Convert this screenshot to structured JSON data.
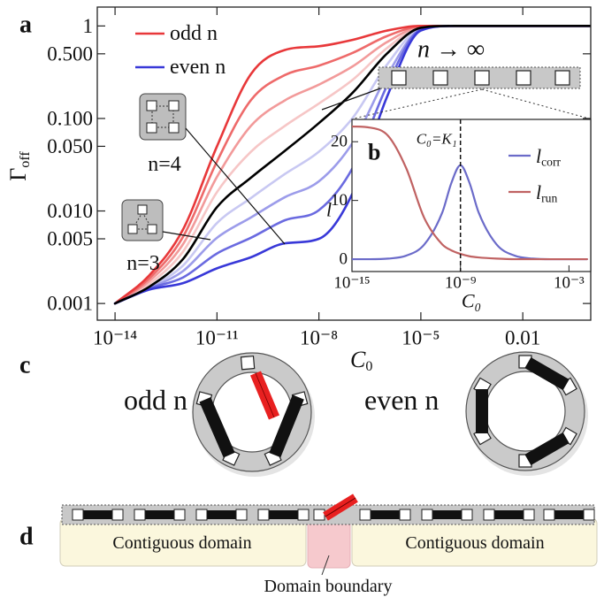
{
  "chart_data": [
    {
      "type": "line",
      "panel_label": "a",
      "xscale": "log",
      "yscale": "log",
      "xlabel": {
        "text": "C",
        "subscript": "0"
      },
      "ylabel": {
        "text": "Γ",
        "subscript": "off"
      },
      "xlim": [
        3e-15,
        1
      ],
      "ylim": [
        0.00066,
        1.6
      ],
      "xticks": [
        {
          "value": 1e-14,
          "label": "10⁻¹⁴"
        },
        {
          "value": 1e-11,
          "label": "10⁻¹¹"
        },
        {
          "value": 1e-08,
          "label": "10⁻⁸"
        },
        {
          "value": 1e-05,
          "label": "10⁻⁵"
        },
        0.01
      ],
      "yticks": [
        0.001,
        0.005,
        {
          "value": 0.01,
          "label": "0.010"
        },
        {
          "value": 0.05,
          "label": "0.050"
        },
        {
          "value": 0.1,
          "label": "0.100"
        },
        {
          "value": 0.5,
          "label": "0.500"
        },
        1
      ],
      "x": [
        1e-14,
        1e-13,
        1e-12,
        1e-11,
        1e-10,
        1e-09,
        1e-08,
        1e-07,
        1e-06,
        1e-05,
        0.0001,
        0.001,
        0.01,
        0.1,
        1
      ],
      "series": [
        {
          "color": "#f6c6c6",
          "values": [
            0.001,
            0.00162,
            0.00363,
            0.016,
            0.0437,
            0.0832,
            0.145,
            0.263,
            0.575,
            0.966,
            1,
            1,
            1,
            1,
            1
          ]
        },
        {
          "color": "#f29a9a",
          "values": [
            0.001,
            0.00174,
            0.00437,
            0.0234,
            0.0832,
            0.157,
            0.232,
            0.367,
            0.668,
            0.977,
            1,
            1,
            1,
            1,
            1
          ]
        },
        {
          "color": "#ee6a6a",
          "values": [
            0.001,
            0.00186,
            0.00525,
            0.0343,
            0.158,
            0.295,
            0.372,
            0.513,
            0.776,
            0.989,
            1,
            1,
            1,
            1,
            1
          ]
        },
        {
          "color": "#e8383a",
          "values": [
            0.001,
            0.002,
            0.0063,
            0.05,
            0.302,
            0.55,
            0.603,
            0.708,
            0.891,
            1,
            1,
            1,
            1,
            1,
            1
          ]
        },
        {
          "color": "#c8c8f2",
          "values": [
            0.001,
            0.00148,
            0.00257,
            0.00741,
            0.0138,
            0.0251,
            0.0437,
            0.102,
            0.38,
            0.933,
            1,
            1,
            1,
            1,
            1
          ]
        },
        {
          "color": "#9c9cea",
          "values": [
            0.001,
            0.00145,
            0.00224,
            0.00513,
            0.00851,
            0.0141,
            0.0209,
            0.055,
            0.288,
            0.912,
            1,
            1,
            1,
            1,
            1
          ]
        },
        {
          "color": "#6a6ae0",
          "values": [
            0.001,
            0.00145,
            0.00191,
            0.00347,
            0.00513,
            0.00794,
            0.0102,
            0.0295,
            0.224,
            0.912,
            1,
            1,
            1,
            1,
            1
          ]
        },
        {
          "color": "#3838d8",
          "values": [
            0.001,
            0.00141,
            0.00166,
            0.0024,
            0.00316,
            0.00447,
            0.005,
            0.0158,
            0.17,
            0.891,
            1,
            1,
            1,
            1,
            1
          ]
        },
        {
          "color": "#000000",
          "values": [
            0.001,
            0.00151,
            0.00302,
            0.011,
            0.0229,
            0.0447,
            0.0891,
            0.191,
            0.501,
            0.955,
            1,
            1,
            1,
            1,
            1
          ]
        }
      ],
      "legend": [
        {
          "label": "odd n",
          "color": "#e8383a"
        },
        {
          "label": "even n",
          "color": "#3838d8"
        }
      ],
      "annotations": [
        "n → ∞",
        "n=4",
        "n=3"
      ]
    },
    {
      "type": "line",
      "panel_label": "b",
      "xscale": "log",
      "xlabel": "C₀",
      "ylabel": "l",
      "xlim": [
        1e-15,
        0.016
      ],
      "ylim": [
        -2.1,
        23.8
      ],
      "xticks": [
        {
          "value": 1e-15,
          "label": "10⁻¹⁵"
        },
        {
          "value": 1e-09,
          "label": "10⁻⁹"
        },
        {
          "value": 0.001,
          "label": "10⁻³"
        }
      ],
      "yticks": [
        0,
        10,
        20
      ],
      "x": [
        1e-15,
        1e-14,
        1e-13,
        1e-12,
        1e-11,
        1e-10,
        3.16e-10,
        1e-09,
        3.16e-09,
        1e-08,
        1e-07,
        1e-06,
        1e-05,
        0.0001,
        0.001,
        0.01
      ],
      "series": [
        {
          "color": "#6b6bc9",
          "values": [
            0,
            0,
            0.1,
            0.6,
            2.5,
            8.0,
            13.0,
            16.0,
            13.0,
            8.0,
            2.5,
            0.6,
            0.1,
            0,
            0,
            0
          ]
        },
        {
          "color": "#c06262",
          "values": [
            22.6,
            22.4,
            21.0,
            15.5,
            7.0,
            2.5,
            1.5,
            0.9,
            0.5,
            0.3,
            0.1,
            0,
            0,
            0,
            0,
            0
          ]
        }
      ],
      "legend": [
        {
          "text": "l",
          "subscript": "corr",
          "color": "#6b6bc9"
        },
        {
          "text": "l",
          "subscript": "run",
          "color": "#c06262"
        }
      ],
      "vline": {
        "value": 1e-09,
        "label": "C₀=K₁"
      }
    }
  ],
  "diagram": {
    "c": {
      "label": "c",
      "odd": "odd n",
      "even": "even n"
    },
    "d": {
      "label": "d",
      "domains": [
        "Contiguous domain",
        "Contiguous domain"
      ],
      "boundary": "Domain boundary"
    }
  }
}
